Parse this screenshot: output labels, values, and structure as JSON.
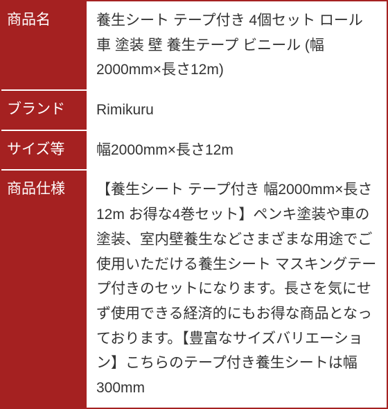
{
  "table": {
    "label_bg_color": "#a52121",
    "label_text_color": "#ffffff",
    "value_bg_color": "#ffffff",
    "value_text_color": "#333333",
    "border_color": "#a52121",
    "row_separator_color": "#ffffff",
    "font_size": 21,
    "line_height": 1.7,
    "rows": [
      {
        "label": "商品名",
        "value": "養生シート テープ付き 4個セット ロール 車 塗装 壁 養生テープ ビニール (幅2000mm×長さ12m)"
      },
      {
        "label": "ブランド",
        "value": "Rimikuru"
      },
      {
        "label": "サイズ等",
        "value": "幅2000mm×長さ12m"
      },
      {
        "label": "商品仕様",
        "value": "【養生シート テープ付き 幅2000mm×長さ12m お得な4巻セット】ペンキ塗装や車の塗装、室内壁養生などさまざまな用途でご使用いただける養生シート マスキングテープ付きのセットになります。長さを気にせず使用できる経済的にもお得な商品となっております。【豊富なサイズバリエーション】こちらのテープ付き養生シートは幅300mm"
      }
    ]
  }
}
